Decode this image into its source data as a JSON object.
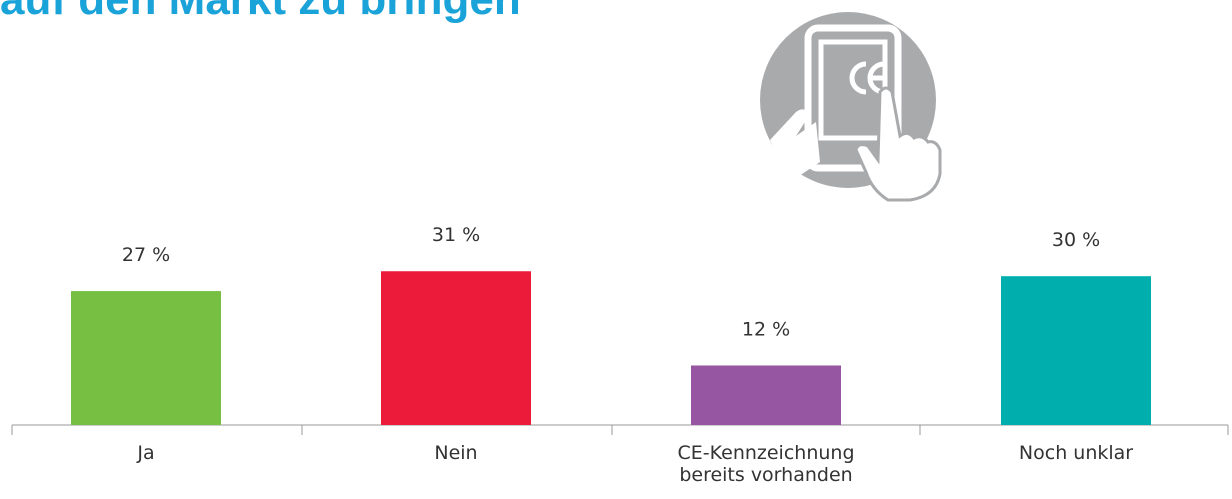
{
  "chart_data": {
    "type": "bar",
    "title": "auf den Markt zu bringen",
    "categories": [
      "Ja",
      "Nein",
      "CE-Kennzeichnung bereits vorhanden",
      "Noch unklar"
    ],
    "values": [
      27,
      31,
      12,
      30
    ],
    "value_labels": [
      "27 %",
      "31 %",
      "12 %",
      "30 %"
    ],
    "colors": [
      "#76bf43",
      "#ed1b3a",
      "#9656a2",
      "#00aeae"
    ]
  }
}
